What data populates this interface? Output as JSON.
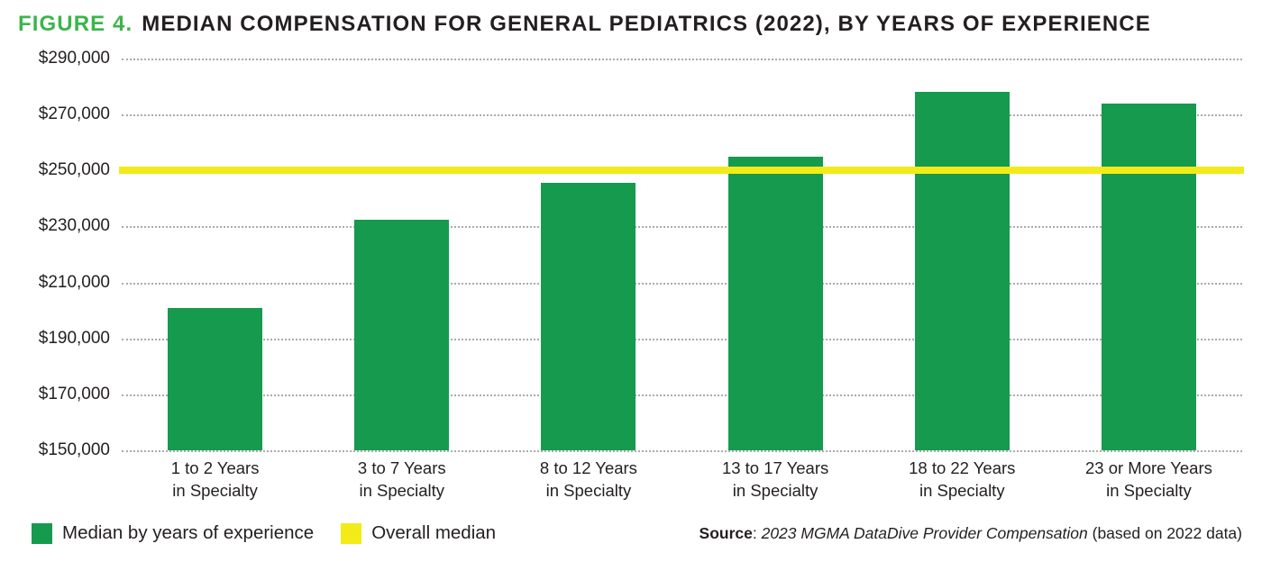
{
  "title": {
    "figure_label": "FIGURE 4.",
    "text": "MEDIAN COMPENSATION FOR GENERAL PEDIATRICS (2022), BY YEARS OF EXPERIENCE"
  },
  "chart_data": {
    "type": "bar",
    "title": "Median Compensation for General Pediatrics (2022), by Years of Experience",
    "categories": [
      {
        "line1": "1 to 2 Years",
        "line2": "in Specialty"
      },
      {
        "line1": "3 to 7 Years",
        "line2": "in Specialty"
      },
      {
        "line1": "8 to 12 Years",
        "line2": "in Specialty"
      },
      {
        "line1": "13 to 17 Years",
        "line2": "in Specialty"
      },
      {
        "line1": "18 to 22 Years",
        "line2": "in Specialty"
      },
      {
        "line1": "23 or More Years",
        "line2": "in Specialty"
      }
    ],
    "values": [
      201000,
      232500,
      245500,
      255000,
      278000,
      274000
    ],
    "overall_median": 250000,
    "xlabel": "",
    "ylabel": "",
    "ylim": [
      150000,
      290000
    ],
    "ytick_step": 20000,
    "ytick_labels": [
      "$150,000",
      "$170,000",
      "$190,000",
      "$210,000",
      "$230,000",
      "$250,000",
      "$270,000",
      "$290,000"
    ],
    "grid": "horizontal-dotted",
    "legend_position": "bottom-left",
    "bar_color": "#169a4e",
    "median_line_color": "#f2eb18",
    "title_accent_color": "#3bb54a"
  },
  "legend": {
    "items": [
      {
        "label": "Median by years of experience",
        "color": "#169a4e"
      },
      {
        "label": "Overall median",
        "color": "#f2eb18"
      }
    ]
  },
  "source": {
    "label": "Source",
    "separator": ": ",
    "citation": "2023 MGMA DataDive Provider Compensation",
    "suffix": " (based on 2022 data)"
  }
}
